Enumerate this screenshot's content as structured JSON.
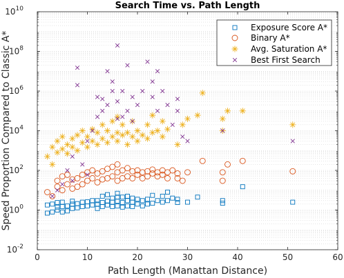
{
  "chart_data": {
    "type": "scatter",
    "title": "Search Time vs. Path Length",
    "xlabel": "Path Length (Manattan Distance)",
    "ylabel": "Speed Proportion Compared to Classic A*",
    "xlim": [
      0,
      60
    ],
    "ylim": [
      0.01,
      10000000000
    ],
    "yscale": "log",
    "grid": "y-minor",
    "legend_position": "top-right",
    "x_ticks": [
      "0",
      "10",
      "20",
      "30",
      "40",
      "50",
      "60"
    ],
    "y_tick_exponents": [
      "-2",
      "0",
      "2",
      "4",
      "6",
      "8",
      "10"
    ],
    "y_tick_base": "10",
    "series": [
      {
        "name": "Exposure Score A*",
        "marker": "square",
        "color": "#0072BD",
        "points": [
          [
            2,
            0.7
          ],
          [
            2,
            1.8
          ],
          [
            3,
            0.8
          ],
          [
            3,
            2
          ],
          [
            4,
            1
          ],
          [
            4,
            1.4
          ],
          [
            4,
            2.4
          ],
          [
            5,
            0.8
          ],
          [
            5,
            1.5
          ],
          [
            5,
            2.5
          ],
          [
            6,
            0.9
          ],
          [
            6,
            1.6
          ],
          [
            7,
            1.2
          ],
          [
            7,
            2
          ],
          [
            7,
            2.8
          ],
          [
            8,
            1.3
          ],
          [
            8,
            2.1
          ],
          [
            9,
            1.5
          ],
          [
            9,
            2.5
          ],
          [
            10,
            1.6
          ],
          [
            10,
            2.6
          ],
          [
            11,
            1.8
          ],
          [
            11,
            3
          ],
          [
            12,
            1.2
          ],
          [
            12,
            2
          ],
          [
            12,
            3
          ],
          [
            13,
            1.5
          ],
          [
            13,
            2.4
          ],
          [
            13,
            5
          ],
          [
            14,
            1.8
          ],
          [
            14,
            2.8
          ],
          [
            14,
            6
          ],
          [
            15,
            1.5
          ],
          [
            15,
            2.5
          ],
          [
            15,
            4
          ],
          [
            16,
            1.6
          ],
          [
            16,
            2.8
          ],
          [
            16,
            4.5
          ],
          [
            16,
            7
          ],
          [
            17,
            1.4
          ],
          [
            17,
            2.4
          ],
          [
            17,
            4.5
          ],
          [
            18,
            1.6
          ],
          [
            18,
            3
          ],
          [
            18,
            5
          ],
          [
            19,
            1.5
          ],
          [
            19,
            2.5
          ],
          [
            19,
            4
          ],
          [
            20,
            2
          ],
          [
            20,
            3.5
          ],
          [
            21,
            1.6
          ],
          [
            21,
            3
          ],
          [
            22,
            2
          ],
          [
            22,
            3.5
          ],
          [
            23,
            2.2
          ],
          [
            23,
            5.5
          ],
          [
            24,
            3
          ],
          [
            25,
            2.5
          ],
          [
            25,
            5
          ],
          [
            26,
            3
          ],
          [
            26,
            8
          ],
          [
            27,
            4
          ],
          [
            28,
            2.4
          ],
          [
            28,
            3.5
          ],
          [
            30,
            2.5
          ],
          [
            32,
            4.5
          ],
          [
            37,
            2.2
          ],
          [
            37,
            3
          ],
          [
            41,
            15
          ],
          [
            51,
            2.5
          ]
        ]
      },
      {
        "name": "Binary A*",
        "marker": "circle",
        "color": "#D95319",
        "points": [
          [
            2,
            8
          ],
          [
            3,
            5
          ],
          [
            4,
            15
          ],
          [
            4,
            30
          ],
          [
            5,
            10
          ],
          [
            5,
            50
          ],
          [
            6,
            20
          ],
          [
            6,
            60
          ],
          [
            7,
            12
          ],
          [
            7,
            35
          ],
          [
            8,
            15
          ],
          [
            8,
            40
          ],
          [
            9,
            20
          ],
          [
            9,
            60
          ],
          [
            10,
            30
          ],
          [
            10,
            80
          ],
          [
            11,
            40
          ],
          [
            11,
            100
          ],
          [
            12,
            25
          ],
          [
            12,
            70
          ],
          [
            13,
            35
          ],
          [
            13,
            90
          ],
          [
            14,
            40
          ],
          [
            14,
            120
          ],
          [
            15,
            50
          ],
          [
            15,
            150
          ],
          [
            16,
            30
          ],
          [
            16,
            80
          ],
          [
            16,
            200
          ],
          [
            17,
            40
          ],
          [
            17,
            100
          ],
          [
            18,
            50
          ],
          [
            18,
            130
          ],
          [
            19,
            40
          ],
          [
            19,
            90
          ],
          [
            20,
            60
          ],
          [
            20,
            100
          ],
          [
            21,
            40
          ],
          [
            21,
            80
          ],
          [
            22,
            50
          ],
          [
            22,
            90
          ],
          [
            23,
            70
          ],
          [
            23,
            110
          ],
          [
            24,
            50
          ],
          [
            24,
            80
          ],
          [
            25,
            60
          ],
          [
            25,
            100
          ],
          [
            26,
            40
          ],
          [
            26,
            80
          ],
          [
            27,
            100
          ],
          [
            28,
            40
          ],
          [
            28,
            70
          ],
          [
            29,
            30
          ],
          [
            30,
            80
          ],
          [
            33,
            300
          ],
          [
            37,
            30
          ],
          [
            37,
            80
          ],
          [
            38,
            200
          ],
          [
            41,
            300
          ],
          [
            51,
            90
          ]
        ]
      },
      {
        "name": "Avg. Saturation A*",
        "marker": "star",
        "color": "#EDB120",
        "points": [
          [
            2,
            500
          ],
          [
            3,
            200
          ],
          [
            3,
            1500
          ],
          [
            4,
            800
          ],
          [
            4,
            3000
          ],
          [
            5,
            1200
          ],
          [
            5,
            5000
          ],
          [
            6,
            700
          ],
          [
            6,
            2000
          ],
          [
            7,
            1500
          ],
          [
            7,
            4000
          ],
          [
            8,
            1000
          ],
          [
            8,
            6000
          ],
          [
            9,
            2500
          ],
          [
            9,
            10000
          ],
          [
            10,
            1500
          ],
          [
            10,
            5000
          ],
          [
            11,
            3000
          ],
          [
            11,
            12000
          ],
          [
            12,
            2000
          ],
          [
            12,
            8000
          ],
          [
            13,
            4000
          ],
          [
            13,
            20000
          ],
          [
            14,
            2500
          ],
          [
            14,
            10000
          ],
          [
            15,
            5000
          ],
          [
            15,
            30000
          ],
          [
            16,
            3000
          ],
          [
            16,
            8000
          ],
          [
            16,
            50000
          ],
          [
            17,
            6000
          ],
          [
            17,
            20000
          ],
          [
            18,
            2000
          ],
          [
            18,
            8000
          ],
          [
            19,
            5000
          ],
          [
            19,
            30000
          ],
          [
            20,
            3000
          ],
          [
            20,
            10000
          ],
          [
            21,
            6000
          ],
          [
            22,
            4000
          ],
          [
            22,
            20000
          ],
          [
            23,
            8000
          ],
          [
            23,
            60000
          ],
          [
            24,
            10000
          ],
          [
            25,
            5000
          ],
          [
            25,
            30000
          ],
          [
            26,
            12000
          ],
          [
            28,
            2000
          ],
          [
            29,
            20000
          ],
          [
            30,
            40000
          ],
          [
            32,
            60000
          ],
          [
            33,
            800000
          ],
          [
            37,
            10000
          ],
          [
            37,
            40000
          ],
          [
            38,
            100000
          ],
          [
            41,
            100000
          ],
          [
            51,
            20000
          ]
        ]
      },
      {
        "name": "Best First Search",
        "marker": "x",
        "color": "#7E2F8E",
        "points": [
          [
            3,
            5
          ],
          [
            4,
            10
          ],
          [
            5,
            20
          ],
          [
            6,
            100
          ],
          [
            7,
            30
          ],
          [
            7,
            500
          ],
          [
            8,
            15000000
          ],
          [
            8,
            2000000
          ],
          [
            9,
            200
          ],
          [
            10,
            60
          ],
          [
            10,
            3000
          ],
          [
            11,
            10000
          ],
          [
            12,
            50000
          ],
          [
            12,
            500000
          ],
          [
            13,
            100000
          ],
          [
            13,
            400000
          ],
          [
            14,
            200000
          ],
          [
            14,
            10000000
          ],
          [
            15,
            1000000
          ],
          [
            15,
            3000000
          ],
          [
            16,
            200000000
          ],
          [
            16,
            40000
          ],
          [
            16,
            300000
          ],
          [
            17,
            50000
          ],
          [
            17,
            1000000
          ],
          [
            18,
            20000000
          ],
          [
            18,
            100000
          ],
          [
            19,
            500000
          ],
          [
            19,
            30000
          ],
          [
            20,
            200000
          ],
          [
            21,
            1000000
          ],
          [
            22,
            30000000
          ],
          [
            23,
            500000
          ],
          [
            23,
            3000000
          ],
          [
            24,
            10000000
          ],
          [
            24,
            100000
          ],
          [
            25,
            1000000
          ],
          [
            26,
            200000
          ],
          [
            27,
            20000
          ],
          [
            28,
            400000
          ],
          [
            28,
            100000
          ],
          [
            29,
            5000
          ],
          [
            30,
            3000
          ],
          [
            37,
            10000
          ],
          [
            51,
            3000
          ]
        ]
      }
    ]
  }
}
